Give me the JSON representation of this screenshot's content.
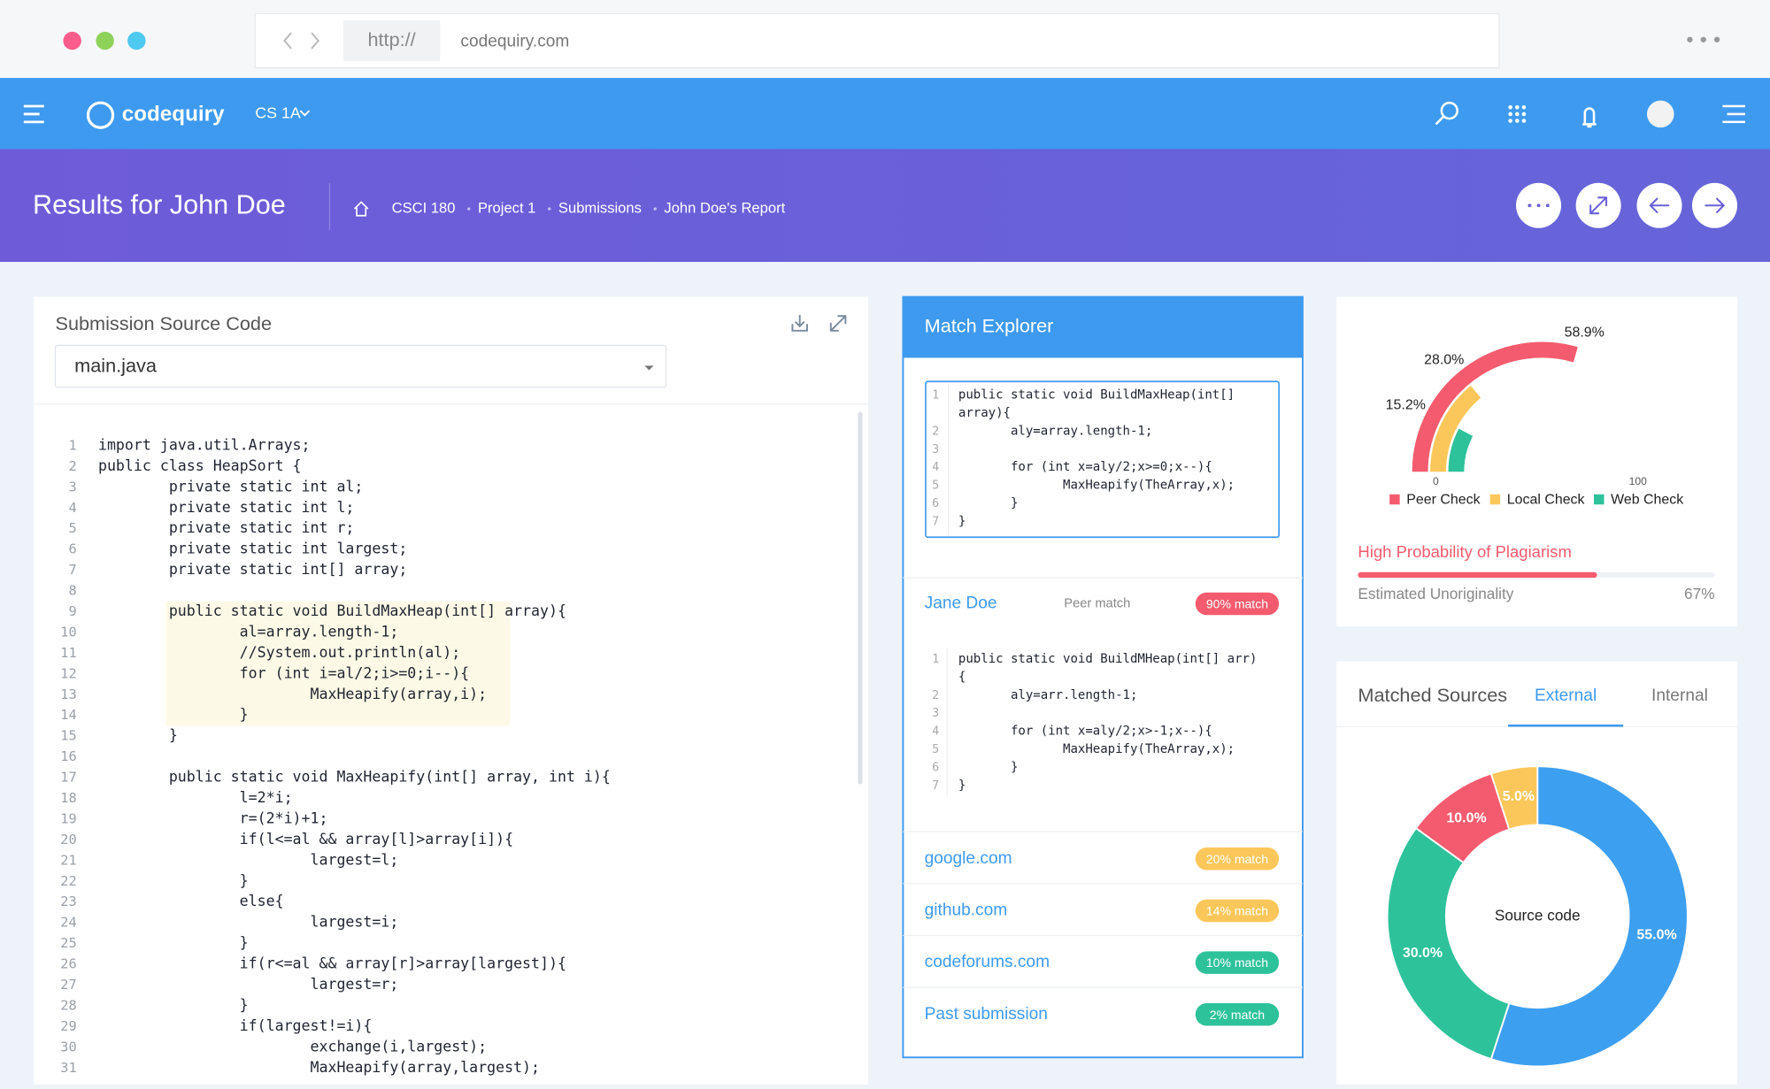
{
  "browser": {
    "url_scheme": "http://",
    "url": "codequiry.com"
  },
  "navbar": {
    "brand": "codequiry",
    "course": "CS 1A"
  },
  "header": {
    "title": "Results for John Doe",
    "breadcrumb": [
      "CSCI 180",
      "Project 1",
      "Submissions",
      "John Doe's Report"
    ]
  },
  "source_panel": {
    "title": "Submission Source Code",
    "file": "main.java",
    "lines": [
      {
        "number": 1,
        "text": "import java.util.Arrays;"
      },
      {
        "number": 2,
        "text": "public class HeapSort {"
      },
      {
        "number": 3,
        "text": "        private static int al;"
      },
      {
        "number": 4,
        "text": "        private static int l;"
      },
      {
        "number": 5,
        "text": "        private static int r;"
      },
      {
        "number": 6,
        "text": "        private static int largest;"
      },
      {
        "number": 7,
        "text": "        private static int[] array;"
      },
      {
        "number": 8
      },
      {
        "number": 9,
        "text": "        public static void BuildMaxHeap(int[] array){",
        "highlight": true
      },
      {
        "number": 10,
        "text": "                al=array.length-1;",
        "highlight": true
      },
      {
        "number": 11,
        "text": "                //System.out.println(al);",
        "highlight": true
      },
      {
        "number": 12,
        "text": "                for (int i=al/2;i>=0;i--){",
        "highlight": true
      },
      {
        "number": 13,
        "text": "                        MaxHeapify(array,i);",
        "highlight": true
      },
      {
        "number": 14,
        "text": "                }",
        "highlight": true
      },
      {
        "number": 15,
        "text": "        }"
      },
      {
        "number": 16
      },
      {
        "number": 17,
        "text": "        public static void MaxHeapify(int[] array, int i){"
      },
      {
        "number": 18,
        "text": "                l=2*i;"
      },
      {
        "number": 19,
        "text": "                r=(2*i)+1;"
      },
      {
        "number": 20,
        "text": "                if(l<=al && array[l]>array[i]){"
      },
      {
        "number": 21,
        "text": "                        largest=l;"
      },
      {
        "number": 22,
        "text": "                }"
      },
      {
        "number": 23,
        "text": "                else{"
      },
      {
        "number": 24,
        "text": "                        largest=i;"
      },
      {
        "number": 25,
        "text": "                }"
      },
      {
        "number": 26,
        "text": "                if(r<=al && array[r]>array[largest]){"
      },
      {
        "number": 27,
        "text": "                        largest=r;"
      },
      {
        "number": 28,
        "text": "                }"
      },
      {
        "number": 29,
        "text": "                if(largest!=i){"
      },
      {
        "number": 30,
        "text": "                        exchange(i,largest);"
      },
      {
        "number": 31,
        "text": "                        MaxHeapify(array,largest);"
      }
    ]
  },
  "match_explorer": {
    "title": "Match Explorer",
    "snippets": [
      [
        {
          "number": 1,
          "text": [
            "public static void BuildMaxHeap(int[]",
            "array){"
          ]
        },
        {
          "number": 2,
          "text": "       aly=array.length-1;"
        },
        {
          "number": 3
        },
        {
          "number": 4,
          "text": "       for (int x=aly/2;x>=0;x--){"
        },
        {
          "number": 5,
          "text": "              MaxHeapify(TheArray,x);"
        },
        {
          "number": 6,
          "text": "       }"
        },
        {
          "number": 7,
          "text": "}"
        }
      ],
      [
        {
          "number": 1,
          "text": [
            "public static void BuildMHeap(int[] arr)",
            "{"
          ]
        },
        {
          "number": 2,
          "text": "       aly=arr.length-1;"
        },
        {
          "number": 3
        },
        {
          "number": 4,
          "text": "       for (int x=aly/2;x>-1;x--){"
        },
        {
          "number": 5,
          "text": "              MaxHeapify(TheArray,x);"
        },
        {
          "number": 6,
          "text": "       }"
        },
        {
          "number": 7,
          "text": "}"
        }
      ]
    ],
    "matches": [
      {
        "source": "Jane Doe",
        "kind": "Peer match",
        "badge": "90% match",
        "color": "#f45b6e"
      },
      {
        "source": "google.com",
        "badge": "20% match",
        "color": "#fcc75a"
      },
      {
        "source": "github.com",
        "badge": "14% match",
        "color": "#fcc75a"
      },
      {
        "source": "codeforums.com",
        "badge": "10% match",
        "color": "#2ec29a"
      },
      {
        "source": "Past submission",
        "badge": "2% match",
        "color": "#2ec29a"
      }
    ]
  },
  "plagiarism": {
    "verdict": "High Probability of Plagiarism",
    "metric": "Estimated Unoriginality",
    "unoriginality": {
      "value": 67,
      "label": "67%"
    }
  },
  "sources_panel": {
    "title": "Matched Sources",
    "tabs": [
      "External",
      "Internal"
    ]
  },
  "chart_data": [
    {
      "type": "radialBar",
      "categories": [
        "Peer Check",
        "Local Check",
        "Web Check"
      ],
      "values": [
        58.9,
        28.0,
        15.2
      ],
      "value_labels": [
        "58.9%",
        "28.0%",
        "15.2%"
      ],
      "colors": [
        "#f45b6e",
        "#fcc75a",
        "#2ec29a"
      ],
      "ylim": [
        0,
        100
      ],
      "yticks": [
        0,
        100
      ]
    },
    {
      "type": "donut",
      "center_label": "Source code",
      "values": [
        55,
        30,
        10,
        5
      ],
      "value_labels": [
        "55.0%",
        "30.0%",
        "10.0%",
        "5.0%"
      ],
      "colors": [
        "#3d9ff0",
        "#2ec29a",
        "#f45b6e",
        "#fcc75a"
      ]
    }
  ]
}
